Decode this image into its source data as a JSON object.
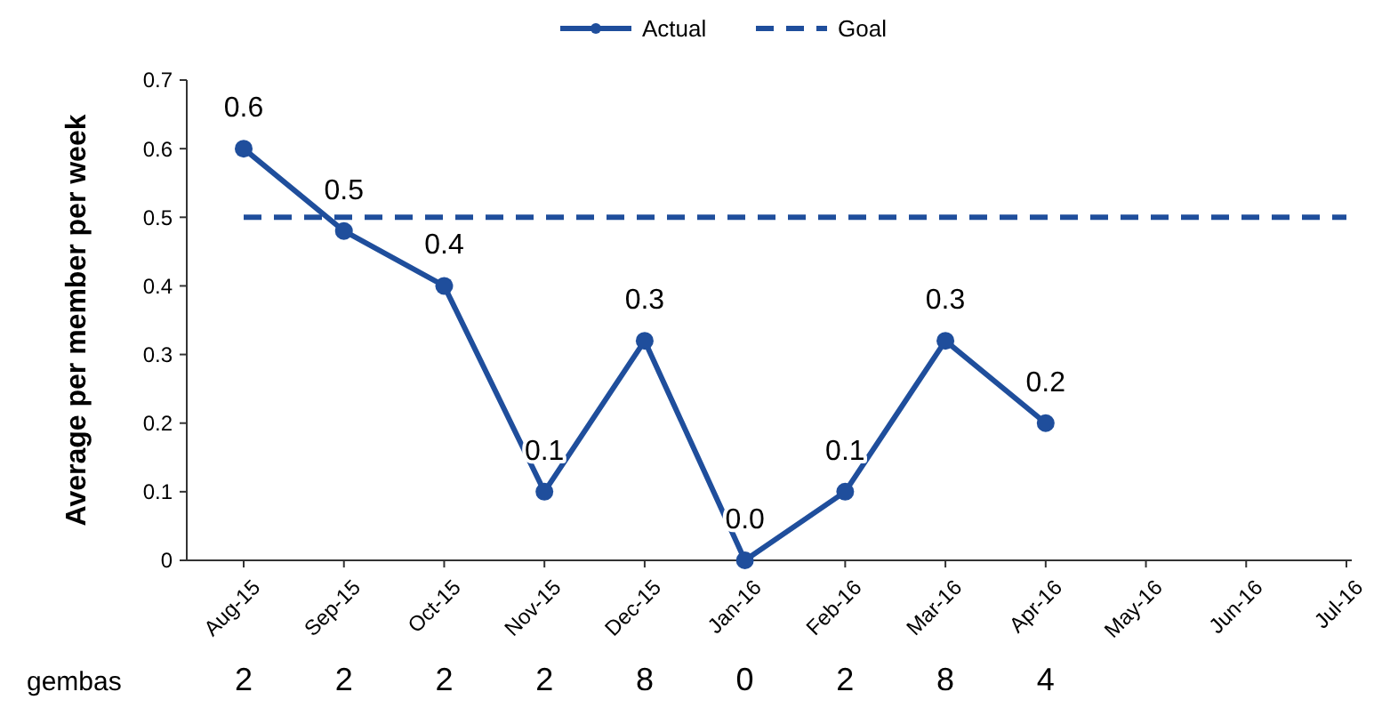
{
  "chart_data": {
    "type": "line",
    "ylabel": "Average per member per week",
    "categories": [
      "Aug-15",
      "Sep-15",
      "Oct-15",
      "Nov-15",
      "Dec-15",
      "Jan-16",
      "Feb-16",
      "Mar-16",
      "Apr-16",
      "May-16",
      "Jun-16",
      "Jul-16"
    ],
    "series": [
      {
        "name": "Actual",
        "color": "#1f4e9c",
        "marker": "circle",
        "line_style": "solid",
        "values": [
          0.6,
          0.48,
          0.4,
          0.1,
          0.32,
          0,
          0.1,
          0.32,
          0.2,
          null,
          null,
          null
        ],
        "value_labels": [
          "0.6",
          "0.5",
          "0.4",
          "0.1",
          "0.3",
          "0.0",
          "0.1",
          "0.3",
          "0.2",
          null,
          null,
          null
        ]
      },
      {
        "name": "Goal",
        "color": "#1f4e9c",
        "marker": "none",
        "line_style": "dashed",
        "values": [
          0.5,
          0.5,
          0.5,
          0.5,
          0.5,
          0.5,
          0.5,
          0.5,
          0.5,
          0.5,
          0.5,
          0.5
        ]
      }
    ],
    "ylim": [
      0,
      0.7
    ],
    "yticks": [
      0,
      0.1,
      0.2,
      0.3,
      0.4,
      0.5,
      0.6,
      0.7
    ],
    "grid": false,
    "legend": "top",
    "annotations": [
      "gembas",
      "2",
      "2",
      "2",
      "2",
      "8",
      "0",
      "2",
      "8",
      "4"
    ]
  }
}
